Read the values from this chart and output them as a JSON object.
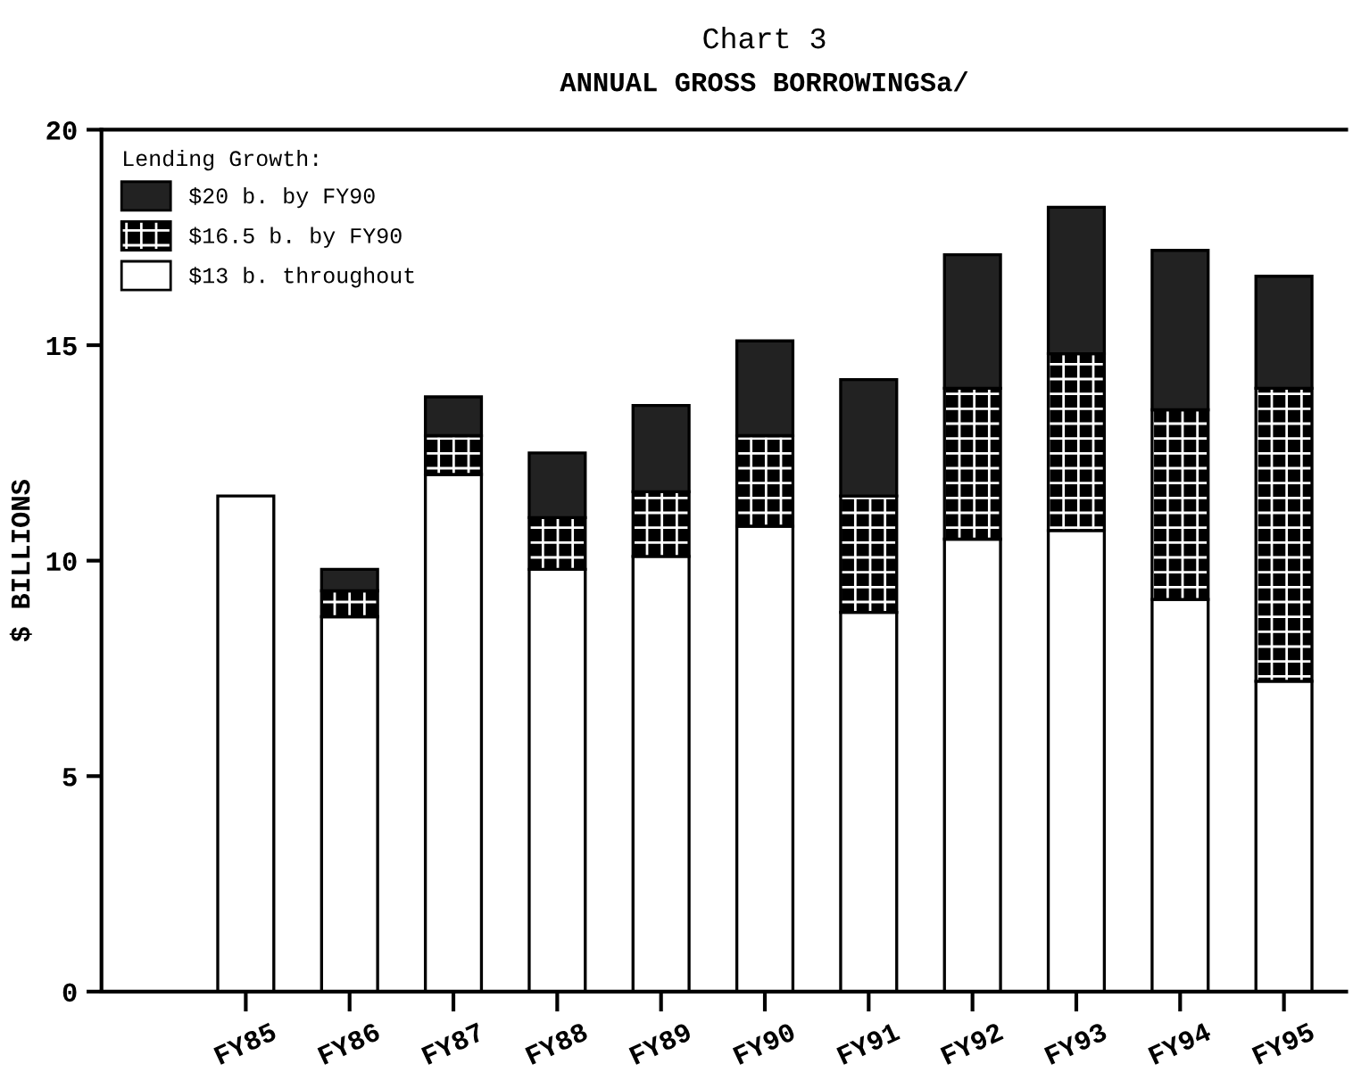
{
  "chart_data": {
    "type": "bar",
    "title": "Chart 3",
    "subtitle": "ANNUAL GROSS BORROWINGSa/",
    "ylabel": "$ BILLIONS",
    "legend_title": "Lending Growth:",
    "categories": [
      "FY85",
      "FY86",
      "FY87",
      "FY88",
      "FY89",
      "FY90",
      "FY91",
      "FY92",
      "FY93",
      "FY94",
      "FY95"
    ],
    "stacked": true,
    "series": [
      {
        "name": "$13 b. throughout",
        "color": "#ffffff",
        "values": [
          11.5,
          8.7,
          12.0,
          9.8,
          10.1,
          10.8,
          8.8,
          10.5,
          10.7,
          9.1,
          7.2
        ]
      },
      {
        "name": "$16.5 b. by FY90",
        "color": "#000000",
        "values": [
          null,
          0.6,
          0.9,
          1.2,
          1.5,
          2.1,
          2.7,
          3.5,
          4.1,
          4.4,
          6.8
        ]
      },
      {
        "name": "$20 b. by FY90",
        "color": "#222222",
        "values": [
          null,
          0.5,
          0.9,
          1.5,
          2.0,
          2.2,
          2.7,
          3.1,
          3.4,
          3.7,
          2.6
        ]
      }
    ],
    "ylim": [
      0,
      20
    ],
    "yticks": [
      0,
      5,
      10,
      15,
      20
    ],
    "grid": false,
    "legend": "top left"
  }
}
